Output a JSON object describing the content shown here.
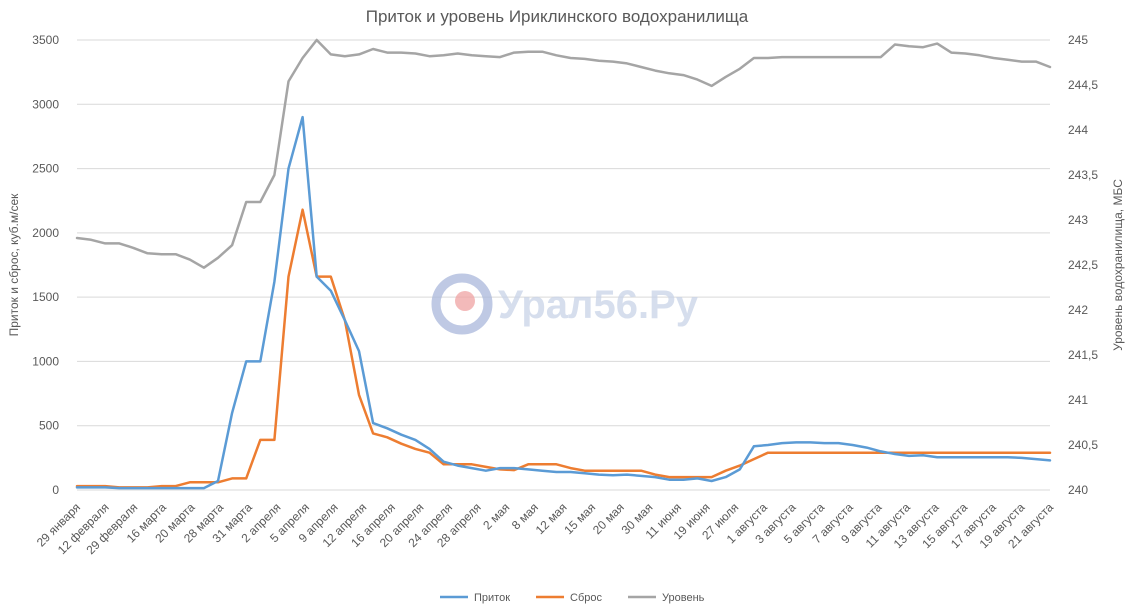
{
  "chart_data": {
    "type": "line",
    "title": "Приток и уровень Ириклинского водохранилища",
    "ylabel": "Приток и сброс, куб.м/сек",
    "y2label": "Уровень водохранилища, МБС",
    "xlabel": "",
    "ylim": [
      0,
      3500
    ],
    "y_ticks": [
      0,
      500,
      1000,
      1500,
      2000,
      2500,
      3000,
      3500
    ],
    "y2lim": [
      240,
      245
    ],
    "y2_ticks": [
      "240",
      "240,5",
      "241",
      "241,5",
      "242",
      "242,5",
      "243",
      "243,5",
      "244",
      "244,5",
      "245"
    ],
    "grid": true,
    "legend_position": "bottom",
    "x_tick_labels": [
      "29 января",
      "12 февраля",
      "29 февраля",
      "16 марта",
      "20 марта",
      "28 марта",
      "31 марта",
      "2 апреля",
      "5 апреля",
      "9 апреля",
      "12 апреля",
      "16 апреля",
      "20 апреля",
      "24 апреля",
      "28 апреля",
      "2 мая",
      "8 мая",
      "12 мая",
      "15 мая",
      "20 мая",
      "30 мая",
      "11 июня",
      "19 июня",
      "27 июля",
      "1 августа",
      "3 августа",
      "5 августа",
      "7 августа",
      "9 августа",
      "11 августа",
      "13 августа",
      "15 августа",
      "17 августа",
      "19 августа",
      "21 августа"
    ],
    "series": [
      {
        "name": "Приток",
        "axis": "left",
        "color": "#5b9bd5",
        "values": [
          20,
          20,
          20,
          15,
          15,
          15,
          15,
          15,
          15,
          15,
          70,
          600,
          1000,
          1000,
          1620,
          2500,
          2900,
          1660,
          1550,
          1320,
          1080,
          520,
          480,
          430,
          390,
          320,
          220,
          190,
          170,
          150,
          170,
          170,
          160,
          150,
          140,
          140,
          130,
          120,
          115,
          120,
          110,
          100,
          80,
          80,
          90,
          70,
          100,
          160,
          340,
          350,
          365,
          370,
          370,
          365,
          365,
          350,
          330,
          300,
          280,
          265,
          270,
          255,
          255,
          255,
          255,
          255,
          255,
          250,
          240,
          230
        ]
      },
      {
        "name": "Сброс",
        "axis": "left",
        "color": "#ed7d31",
        "values": [
          30,
          30,
          30,
          20,
          20,
          20,
          30,
          30,
          60,
          60,
          60,
          90,
          90,
          390,
          390,
          1660,
          2180,
          1660,
          1660,
          1320,
          740,
          440,
          410,
          360,
          320,
          290,
          200,
          200,
          200,
          180,
          160,
          155,
          200,
          200,
          200,
          170,
          150,
          150,
          150,
          150,
          150,
          120,
          100,
          100,
          100,
          100,
          150,
          190,
          240,
          290,
          290,
          290,
          290,
          290,
          290,
          290,
          290,
          290,
          290,
          290,
          290,
          290,
          290,
          290,
          290,
          290,
          290,
          290,
          290,
          290
        ]
      },
      {
        "name": "Уровень",
        "axis": "right",
        "color": "#a5a5a5",
        "values": [
          242.8,
          242.78,
          242.74,
          242.74,
          242.69,
          242.63,
          242.62,
          242.62,
          242.56,
          242.47,
          242.58,
          242.72,
          243.2,
          243.2,
          243.5,
          244.54,
          244.8,
          245.0,
          244.84,
          244.82,
          244.84,
          244.9,
          244.86,
          244.86,
          244.85,
          244.82,
          244.83,
          244.85,
          244.83,
          244.82,
          244.81,
          244.86,
          244.87,
          244.87,
          244.83,
          244.8,
          244.79,
          244.77,
          244.76,
          244.74,
          244.7,
          244.66,
          244.63,
          244.61,
          244.56,
          244.49,
          244.59,
          244.68,
          244.8,
          244.8,
          244.81,
          244.81,
          244.81,
          244.81,
          244.81,
          244.81,
          244.81,
          244.81,
          244.95,
          244.93,
          244.92,
          244.96,
          244.86,
          244.85,
          244.83,
          244.8,
          244.78,
          244.76,
          244.76,
          244.7
        ]
      }
    ]
  },
  "watermark": {
    "text": "Урал56.Ру"
  }
}
